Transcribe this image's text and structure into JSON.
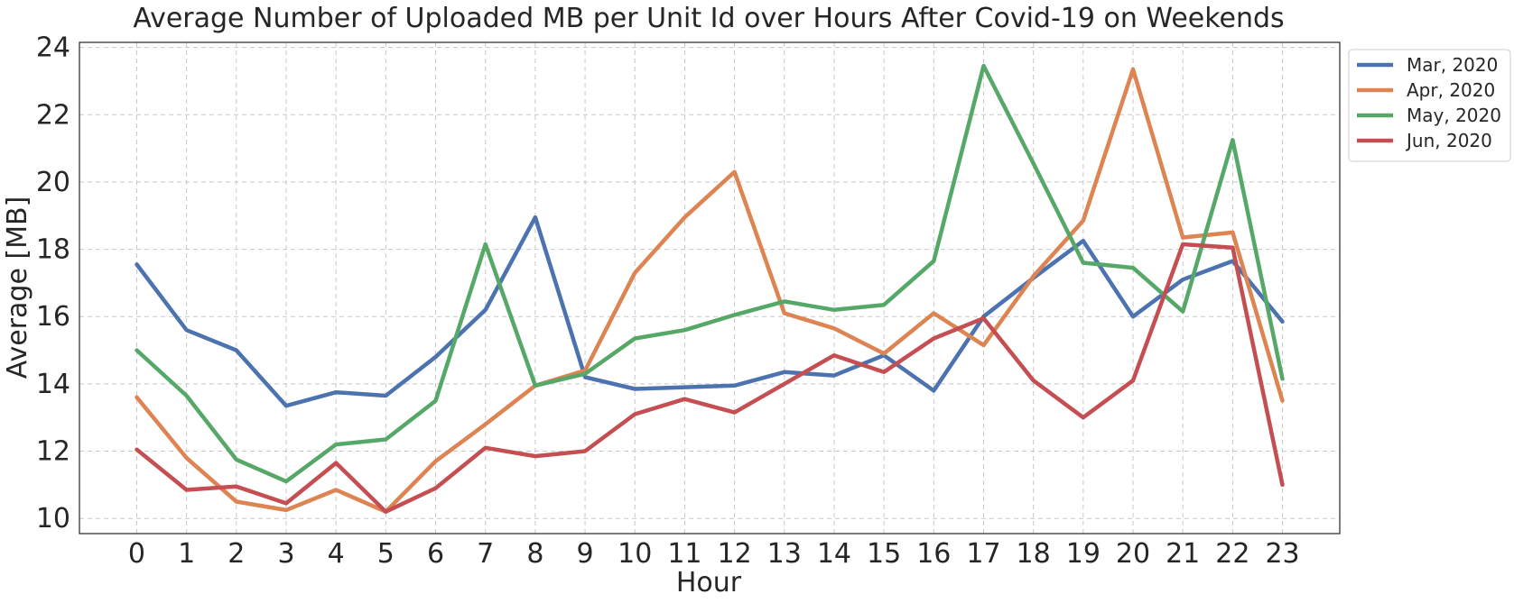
{
  "chart_data": {
    "type": "line",
    "title": "Average Number of Uploaded MB per Unit Id over Hours After Covid-19 on Weekends",
    "xlabel": "Hour",
    "ylabel": "Average [MB]",
    "x": [
      0,
      1,
      2,
      3,
      4,
      5,
      6,
      7,
      8,
      9,
      10,
      11,
      12,
      13,
      14,
      15,
      16,
      17,
      18,
      19,
      20,
      21,
      22,
      23
    ],
    "xlim": [
      -1.15,
      24.15
    ],
    "ylim": [
      9.55,
      24.15
    ],
    "yticks": [
      10,
      12,
      14,
      16,
      18,
      20,
      22,
      24
    ],
    "grid": true,
    "legend_position": "outside-top-right",
    "series": [
      {
        "name": "Mar, 2020",
        "color": "#4c72b0",
        "values": [
          17.55,
          15.6,
          15.0,
          13.35,
          13.75,
          13.65,
          14.8,
          16.2,
          18.95,
          14.2,
          13.85,
          13.9,
          13.95,
          14.35,
          14.25,
          14.85,
          13.8,
          16.0,
          17.15,
          18.25,
          16.0,
          17.1,
          17.65,
          15.85
        ]
      },
      {
        "name": "Apr, 2020",
        "color": "#dd8452",
        "values": [
          13.6,
          11.8,
          10.5,
          10.25,
          10.85,
          10.2,
          11.7,
          12.8,
          13.95,
          14.4,
          17.3,
          18.95,
          20.3,
          16.1,
          15.65,
          14.9,
          16.1,
          15.15,
          17.2,
          18.85,
          23.35,
          18.35,
          18.5,
          13.5
        ]
      },
      {
        "name": "May, 2020",
        "color": "#55a868",
        "values": [
          15.0,
          13.65,
          11.75,
          11.1,
          12.2,
          12.35,
          13.5,
          18.15,
          13.95,
          14.3,
          15.35,
          15.6,
          16.05,
          16.45,
          16.2,
          16.35,
          17.65,
          23.45,
          20.55,
          17.6,
          17.45,
          16.15,
          21.25,
          14.15
        ]
      },
      {
        "name": "Jun, 2020",
        "color": "#c44e52",
        "values": [
          12.05,
          10.85,
          10.95,
          10.45,
          11.65,
          10.2,
          10.9,
          12.1,
          11.85,
          12.0,
          13.1,
          13.55,
          13.15,
          14.0,
          14.85,
          14.35,
          15.35,
          15.95,
          14.1,
          13.0,
          14.1,
          18.15,
          18.05,
          11.0
        ]
      }
    ]
  }
}
